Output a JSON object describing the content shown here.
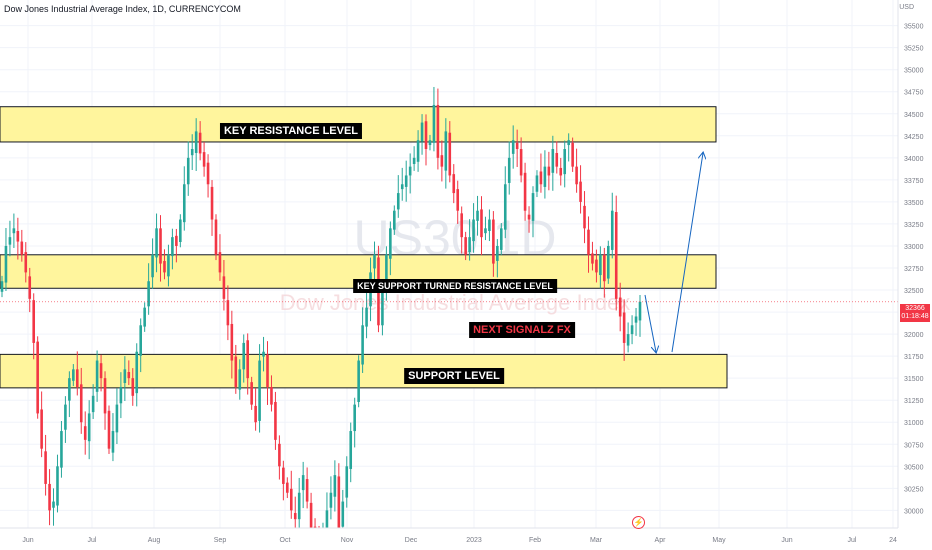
{
  "header": {
    "title": "Dow Jones Industrial Average Index, 1D, CURRENCYCOM"
  },
  "watermark": {
    "symbol": "US30 1D",
    "name": "Dow Jones Industrial Average Index"
  },
  "price_axis": {
    "currency": "USD",
    "ticks": [
      "35500",
      "35250",
      "35000",
      "34750",
      "34500",
      "34250",
      "34000",
      "33750",
      "33500",
      "33250",
      "33000",
      "32750",
      "32500",
      "32250",
      "32000",
      "31750",
      "31500",
      "31250",
      "31000",
      "30750",
      "30500",
      "30250",
      "30000"
    ],
    "last_price": "32366",
    "countdown": "01:18:48"
  },
  "time_axis": {
    "ticks": [
      "Jun",
      "Jul",
      "Aug",
      "Sep",
      "Oct",
      "Nov",
      "Dec",
      "2023",
      "Feb",
      "Mar",
      "Apr",
      "May",
      "Jun",
      "Jul",
      "24"
    ]
  },
  "zones": {
    "resistance_label": "KEY RESISTANCE LEVEL",
    "support_turned_label": "KEY SUPPORT TURNED RESISTANCE LEVEL",
    "support_label": "SUPPORT LEVEL",
    "brand_label": "NEXT SIGNALZ FX"
  },
  "colors": {
    "up": "#26a69a",
    "down": "#f23645",
    "zone_fill": "#fff59d",
    "zone_stroke": "#131722",
    "arrow": "#1565c0",
    "grid": "#f0f3fa",
    "axis_text": "#787b86",
    "price_line": "#f23645"
  },
  "icons": {
    "lightning": "lightning-icon"
  },
  "chart_data": {
    "type": "candlestick",
    "closes": [
      32600,
      33000,
      33100,
      33200,
      33050,
      32900,
      32700,
      32400,
      31900,
      31100,
      30700,
      30300,
      30000,
      30100,
      30500,
      30900,
      31200,
      31500,
      31600,
      31400,
      31000,
      30800,
      31100,
      31300,
      31700,
      31500,
      31100,
      30700,
      30900,
      31200,
      31400,
      31600,
      31500,
      31300,
      31800,
      32100,
      32300,
      32600,
      32900,
      33200,
      32800,
      32700,
      32900,
      33100,
      33000,
      33300,
      33700,
      34000,
      34100,
      34300,
      34050,
      33900,
      33700,
      33300,
      32900,
      32700,
      32400,
      32100,
      31700,
      31400,
      31600,
      31900,
      31500,
      31200,
      31000,
      31700,
      31800,
      31400,
      31200,
      30800,
      30500,
      30300,
      30200,
      30000,
      29900,
      30200,
      30400,
      30100,
      29800,
      29700,
      29600,
      29800,
      30000,
      30200,
      30400,
      29800,
      30100,
      30500,
      30900,
      31200,
      31700,
      32100,
      32300,
      32700,
      32900,
      32100,
      32500,
      32900,
      33200,
      33400,
      33600,
      33700,
      33800,
      33900,
      34000,
      34200,
      34400,
      34100,
      34200,
      34600,
      34000,
      33900,
      34300,
      33800,
      33600,
      33400,
      33100,
      32900,
      33100,
      33300,
      33400,
      33100,
      33200,
      33300,
      32800,
      33000,
      33200,
      33700,
      34000,
      34200,
      34100,
      33800,
      33400,
      33300,
      33600,
      33800,
      33700,
      33900,
      33800,
      34100,
      33900,
      33800,
      34100,
      34200,
      33900,
      33700,
      33500,
      33200,
      32900,
      32800,
      32700,
      32900,
      32600,
      33000,
      33400,
      32400,
      32200,
      31900,
      32000,
      32100,
      32200,
      32366
    ],
    "price_range": [
      29800,
      35700
    ],
    "zones": [
      {
        "name": "resistance",
        "low": 34180,
        "high": 34580
      },
      {
        "name": "support_turned_resistance",
        "low": 32520,
        "high": 32900
      },
      {
        "name": "support",
        "low": 31390,
        "high": 31770
      }
    ]
  }
}
